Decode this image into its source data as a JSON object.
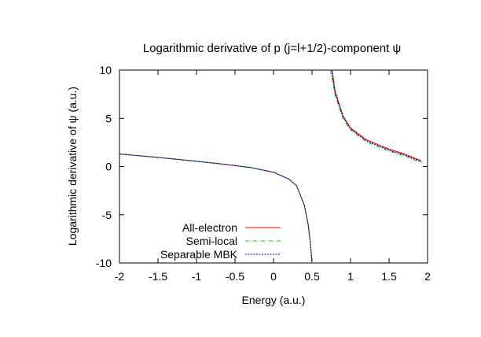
{
  "chart_data": {
    "type": "line",
    "title": "Logarithmic derivative of p (j=l+1/2)-component ψ",
    "xlabel": "Energy (a.u.)",
    "ylabel": "Logarithmic derivative of ψ (a.u.)",
    "xlim": [
      -2,
      2
    ],
    "ylim": [
      -10,
      10
    ],
    "xticks": [
      -2,
      -1.5,
      -1,
      -0.5,
      0,
      0.5,
      1,
      1.5,
      2
    ],
    "xtick_labels": [
      "-2",
      "-1.5",
      "-1",
      "-0.5",
      "0",
      "0.5",
      "1",
      "1.5",
      "2"
    ],
    "yticks": [
      -10,
      -5,
      0,
      5,
      10
    ],
    "ytick_labels": [
      "-10",
      "-5",
      "0",
      "5",
      "10"
    ],
    "grid": false,
    "legend_position": "bottom-left",
    "series": [
      {
        "name": "All-electron",
        "color": "#ff0000",
        "dash": "solid",
        "x": [
          -2.0,
          -1.5,
          -1.0,
          -0.6,
          -0.3,
          0.0,
          0.2,
          0.3,
          0.4,
          0.45,
          0.48,
          0.5,
          null,
          0.76,
          0.8,
          0.9,
          1.0,
          1.2,
          1.5,
          1.7,
          1.92
        ],
        "y": [
          1.3,
          0.95,
          0.55,
          0.2,
          -0.1,
          -0.6,
          -1.3,
          -2.0,
          -4.0,
          -6.0,
          -8.0,
          -10.0,
          null,
          10.0,
          7.8,
          5.3,
          4.0,
          2.8,
          1.8,
          1.3,
          0.6
        ]
      },
      {
        "name": "Semi-local",
        "color": "#00cc00",
        "dash": "dash",
        "x": [
          -2.0,
          -1.5,
          -1.0,
          -0.6,
          -0.3,
          0.0,
          0.2,
          0.3,
          0.4,
          0.45,
          0.48,
          0.5,
          null,
          0.74,
          0.8,
          0.9,
          1.0,
          1.2,
          1.5,
          1.7,
          1.92
        ],
        "y": [
          1.3,
          0.95,
          0.55,
          0.2,
          -0.1,
          -0.6,
          -1.3,
          -2.0,
          -4.0,
          -6.0,
          -8.0,
          -10.0,
          null,
          10.0,
          7.4,
          5.0,
          3.8,
          2.6,
          1.6,
          1.1,
          0.4
        ]
      },
      {
        "name": "Separable MBK",
        "color": "#0000cc",
        "dash": "dot",
        "x": [
          -2.0,
          -1.5,
          -1.0,
          -0.6,
          -0.3,
          0.0,
          0.2,
          0.3,
          0.4,
          0.45,
          0.48,
          0.5,
          null,
          0.755,
          0.8,
          0.9,
          1.0,
          1.2,
          1.5,
          1.7,
          1.92
        ],
        "y": [
          1.3,
          0.95,
          0.55,
          0.2,
          -0.1,
          -0.6,
          -1.3,
          -2.0,
          -4.0,
          -6.0,
          -8.0,
          -10.0,
          null,
          10.0,
          7.6,
          5.2,
          3.9,
          2.7,
          1.7,
          1.2,
          0.5
        ]
      }
    ]
  }
}
